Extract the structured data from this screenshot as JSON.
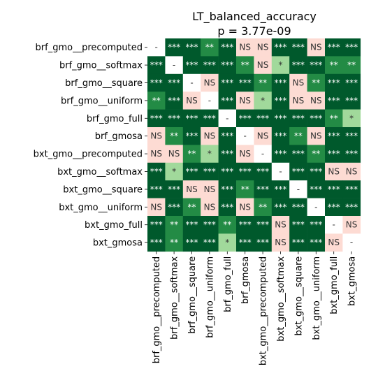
{
  "chart_data": {
    "type": "heatmap",
    "title": "LT_balanced_accuracy",
    "subtitle": "p = 3.77e-09",
    "labels": [
      "brf_gmo__precomputed",
      "brf_gmo__softmax",
      "brf_gmo__square",
      "brf_gmo__uniform",
      "brf_gmo_full",
      "brf_gmosa",
      "bxt_gmo__precomputed",
      "bxt_gmo__softmax",
      "bxt_gmo__square",
      "bxt_gmo__uniform",
      "bxt_gmo_full",
      "bxt_gmosa"
    ],
    "matrix": [
      [
        "-",
        "***",
        "***",
        "**",
        "***",
        "NS",
        "NS",
        "***",
        "***",
        "NS",
        "***",
        "***"
      ],
      [
        "***",
        "-",
        "***",
        "***",
        "***",
        "**",
        "NS",
        "*",
        "***",
        "***",
        "**",
        "**"
      ],
      [
        "***",
        "***",
        "-",
        "NS",
        "***",
        "***",
        "**",
        "***",
        "NS",
        "**",
        "***",
        "***"
      ],
      [
        "**",
        "***",
        "NS",
        "-",
        "***",
        "NS",
        "*",
        "***",
        "NS",
        "NS",
        "***",
        "***"
      ],
      [
        "***",
        "***",
        "***",
        "***",
        "-",
        "***",
        "***",
        "***",
        "***",
        "***",
        "**",
        "*"
      ],
      [
        "NS",
        "**",
        "***",
        "NS",
        "***",
        "-",
        "NS",
        "***",
        "**",
        "NS",
        "***",
        "***"
      ],
      [
        "NS",
        "NS",
        "**",
        "*",
        "***",
        "NS",
        "-",
        "***",
        "***",
        "**",
        "***",
        "***"
      ],
      [
        "***",
        "*",
        "***",
        "***",
        "***",
        "***",
        "***",
        "-",
        "***",
        "***",
        "NS",
        "NS"
      ],
      [
        "***",
        "***",
        "NS",
        "NS",
        "***",
        "**",
        "***",
        "***",
        "-",
        "***",
        "***",
        "***"
      ],
      [
        "NS",
        "***",
        "**",
        "NS",
        "***",
        "NS",
        "**",
        "***",
        "***",
        "-",
        "***",
        "***"
      ],
      [
        "***",
        "**",
        "***",
        "***",
        "**",
        "***",
        "***",
        "NS",
        "***",
        "***",
        "-",
        "NS"
      ],
      [
        "***",
        "**",
        "***",
        "***",
        "*",
        "***",
        "***",
        "NS",
        "***",
        "***",
        "NS",
        "-"
      ]
    ],
    "colors": {
      "***": "#00592c",
      "**": "#238b45",
      "*": "#a1d99b",
      "NS": "#fddbd3",
      "-": "#ffffff"
    },
    "text_colors": {
      "***": "#ffffff",
      "**": "#ffffff",
      "*": "#333333",
      "NS": "#333333",
      "-": "#333333"
    }
  }
}
